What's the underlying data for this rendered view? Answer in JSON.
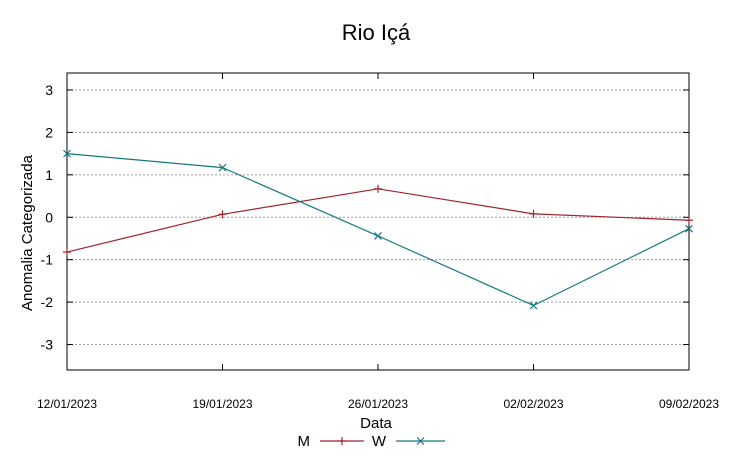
{
  "chart_data": {
    "type": "line",
    "title": "Rio Içá",
    "xlabel": "Data",
    "ylabel": "Anomalia Categorizada",
    "categories": [
      "12/01/2023",
      "19/01/2023",
      "26/01/2023",
      "02/02/2023",
      "09/02/2023"
    ],
    "ylim": [
      -3.6,
      3.4
    ],
    "yticks": [
      "-3",
      "-2",
      "-1",
      "0",
      "1",
      "2",
      "3"
    ],
    "grid": true,
    "legend_position": "bottom",
    "series": [
      {
        "name": "M",
        "values": [
          -0.82,
          0.07,
          0.67,
          0.08,
          -0.07
        ],
        "color": "#a0242c",
        "marker": "plus"
      },
      {
        "name": "W",
        "values": [
          1.5,
          1.17,
          -0.44,
          -2.08,
          -0.27
        ],
        "color": "#147a82",
        "marker": "cross"
      }
    ]
  }
}
